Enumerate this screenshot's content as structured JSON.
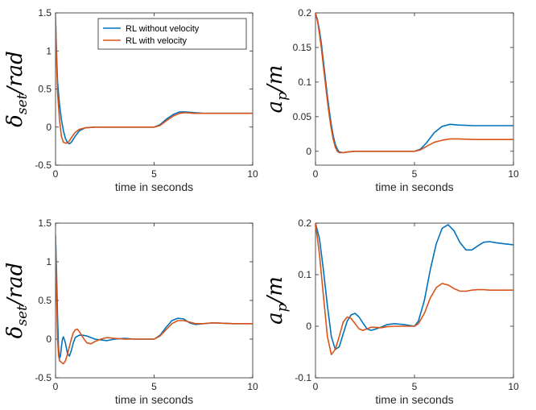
{
  "series_colors": {
    "RL without velocity": "#0072BD",
    "RL with velocity": "#D95319"
  },
  "chart_data": [
    {
      "type": "line",
      "xlabel": "time in seconds",
      "ylabel": {
        "main": "δ",
        "sub": "set",
        "rest": "/rad"
      },
      "xlim": [
        0,
        10
      ],
      "ylim": [
        -0.5,
        1.5
      ],
      "xticks": [
        0,
        5,
        10
      ],
      "xtick_labels": [
        "0",
        "5",
        "10"
      ],
      "yticks": [
        -0.5,
        0,
        0.5,
        1,
        1.5
      ],
      "ytick_labels": [
        "-0.5",
        "0",
        "0.5",
        "1",
        "1.5"
      ],
      "legend": {
        "placement": "top-right",
        "entries": [
          "RL without velocity",
          "RL with velocity"
        ]
      },
      "series": [
        {
          "name": "RL without velocity",
          "x": [
            0,
            0.05,
            0.1,
            0.2,
            0.3,
            0.4,
            0.5,
            0.6,
            0.7,
            0.8,
            1.0,
            1.2,
            1.5,
            2,
            3,
            4,
            5,
            5.3,
            5.6,
            6,
            6.3,
            6.6,
            7,
            7.5,
            8,
            9,
            10
          ],
          "y": [
            1.45,
            1.0,
            0.6,
            0.3,
            0.1,
            -0.05,
            -0.15,
            -0.2,
            -0.22,
            -0.2,
            -0.12,
            -0.05,
            -0.01,
            0,
            0,
            0,
            0,
            0.03,
            0.1,
            0.17,
            0.2,
            0.2,
            0.19,
            0.18,
            0.18,
            0.18,
            0.18
          ]
        },
        {
          "name": "RL with velocity",
          "x": [
            0,
            0.05,
            0.1,
            0.2,
            0.3,
            0.4,
            0.5,
            0.6,
            0.7,
            0.8,
            1.0,
            1.2,
            1.5,
            2,
            3,
            4,
            5,
            5.3,
            5.6,
            6,
            6.3,
            6.6,
            7,
            7.5,
            8,
            9,
            10
          ],
          "y": [
            1.45,
            0.9,
            0.45,
            0.1,
            -0.12,
            -0.2,
            -0.21,
            -0.21,
            -0.18,
            -0.14,
            -0.07,
            -0.03,
            -0.01,
            0,
            0,
            0,
            0,
            0.02,
            0.08,
            0.15,
            0.18,
            0.19,
            0.18,
            0.18,
            0.18,
            0.18,
            0.18
          ]
        }
      ]
    },
    {
      "type": "line",
      "xlabel": "time in seconds",
      "ylabel": {
        "main": "a",
        "sub": "p",
        "rest": "/m"
      },
      "xlim": [
        0,
        10
      ],
      "ylim": [
        -0.02,
        0.2
      ],
      "xticks": [
        0,
        5,
        10
      ],
      "xtick_labels": [
        "0",
        "5",
        "10"
      ],
      "yticks": [
        0,
        0.05,
        0.1,
        0.15,
        0.2
      ],
      "ytick_labels": [
        "0",
        "0.05",
        "0.1",
        "0.15",
        "0.2"
      ],
      "series": [
        {
          "name": "RL without velocity",
          "x": [
            0,
            0.1,
            0.2,
            0.3,
            0.4,
            0.5,
            0.6,
            0.7,
            0.8,
            0.9,
            1.0,
            1.1,
            1.2,
            1.4,
            1.6,
            2,
            3,
            4,
            5,
            5.3,
            5.6,
            6,
            6.4,
            6.8,
            7.2,
            8,
            9,
            10
          ],
          "y": [
            0.2,
            0.19,
            0.175,
            0.155,
            0.13,
            0.105,
            0.08,
            0.058,
            0.038,
            0.022,
            0.01,
            0.003,
            -0.001,
            -0.002,
            -0.001,
            0,
            0,
            0,
            0,
            0.003,
            0.012,
            0.027,
            0.036,
            0.039,
            0.038,
            0.037,
            0.037,
            0.037
          ]
        },
        {
          "name": "RL with velocity",
          "x": [
            0,
            0.1,
            0.2,
            0.3,
            0.4,
            0.5,
            0.6,
            0.7,
            0.8,
            0.9,
            1.0,
            1.1,
            1.2,
            1.4,
            1.6,
            2,
            3,
            4,
            5,
            5.3,
            5.6,
            6,
            6.4,
            6.8,
            7.2,
            8,
            9,
            10
          ],
          "y": [
            0.2,
            0.188,
            0.17,
            0.148,
            0.123,
            0.098,
            0.073,
            0.051,
            0.032,
            0.017,
            0.006,
            0.0,
            -0.002,
            -0.002,
            -0.001,
            0,
            0,
            0,
            0,
            0.002,
            0.007,
            0.013,
            0.016,
            0.018,
            0.018,
            0.017,
            0.017,
            0.017
          ]
        }
      ]
    },
    {
      "type": "line",
      "xlabel": "time in seconds",
      "ylabel": {
        "main": "δ",
        "sub": "set",
        "rest": "/rad"
      },
      "xlim": [
        0,
        10
      ],
      "ylim": [
        -0.5,
        1.5
      ],
      "xticks": [
        0,
        5,
        10
      ],
      "xtick_labels": [
        "0",
        "5",
        "10"
      ],
      "yticks": [
        -0.5,
        0,
        0.5,
        1,
        1.5
      ],
      "ytick_labels": [
        "-0.5",
        "0",
        "0.5",
        "1",
        "1.5"
      ],
      "series": [
        {
          "name": "RL without velocity",
          "x": [
            0,
            0.05,
            0.1,
            0.15,
            0.2,
            0.25,
            0.3,
            0.35,
            0.4,
            0.5,
            0.6,
            0.7,
            0.8,
            0.9,
            1.0,
            1.2,
            1.4,
            1.6,
            1.8,
            2.0,
            2.3,
            2.6,
            3,
            3.5,
            4,
            5,
            5.3,
            5.6,
            5.9,
            6.2,
            6.5,
            6.8,
            7.1,
            7.5,
            8,
            9,
            10
          ],
          "y": [
            1.35,
            0.9,
            0.3,
            -0.1,
            -0.25,
            -0.22,
            -0.1,
            0.0,
            0.03,
            -0.05,
            -0.18,
            -0.22,
            -0.15,
            -0.05,
            0.02,
            0.05,
            0.05,
            0.04,
            0.02,
            0.0,
            -0.01,
            -0.02,
            0.0,
            0.01,
            0.0,
            0,
            0.05,
            0.15,
            0.24,
            0.27,
            0.26,
            0.21,
            0.19,
            0.2,
            0.21,
            0.2,
            0.2
          ]
        },
        {
          "name": "RL with velocity",
          "x": [
            0,
            0.05,
            0.1,
            0.15,
            0.2,
            0.3,
            0.4,
            0.5,
            0.6,
            0.7,
            0.8,
            0.9,
            1.0,
            1.1,
            1.2,
            1.3,
            1.4,
            1.5,
            1.6,
            1.8,
            2.0,
            2.3,
            2.6,
            3,
            3.5,
            4,
            5,
            5.3,
            5.6,
            5.9,
            6.2,
            6.5,
            6.8,
            7.1,
            7.5,
            8,
            9,
            10
          ],
          "y": [
            1.35,
            0.6,
            0.0,
            -0.2,
            -0.28,
            -0.3,
            -0.32,
            -0.28,
            -0.2,
            -0.1,
            0.0,
            0.08,
            0.12,
            0.13,
            0.1,
            0.06,
            0.02,
            -0.02,
            -0.05,
            -0.06,
            -0.03,
            0.0,
            0.02,
            0.01,
            0.0,
            0.0,
            0,
            0.04,
            0.12,
            0.2,
            0.24,
            0.24,
            0.22,
            0.2,
            0.2,
            0.21,
            0.2,
            0.2
          ]
        }
      ]
    },
    {
      "type": "line",
      "xlabel": "time in seconds",
      "ylabel": {
        "main": "a",
        "sub": "p",
        "rest": "/m"
      },
      "xlim": [
        0,
        10
      ],
      "ylim": [
        -0.1,
        0.2
      ],
      "xticks": [
        0,
        5,
        10
      ],
      "xtick_labels": [
        "0",
        "5",
        "10"
      ],
      "yticks": [
        -0.1,
        0,
        0.1,
        0.2
      ],
      "ytick_labels": [
        "-0.1",
        "0",
        "0.1",
        "0.2"
      ],
      "series": [
        {
          "name": "RL without velocity",
          "x": [
            0,
            0.2,
            0.4,
            0.6,
            0.8,
            1.0,
            1.2,
            1.4,
            1.6,
            1.8,
            2.0,
            2.2,
            2.4,
            2.6,
            2.8,
            3.0,
            3.3,
            3.6,
            4.0,
            4.5,
            5.0,
            5.2,
            5.5,
            5.8,
            6.1,
            6.4,
            6.7,
            7.0,
            7.3,
            7.6,
            7.9,
            8.2,
            8.5,
            8.8,
            9.1,
            9.5,
            10
          ],
          "y": [
            0.2,
            0.17,
            0.11,
            0.04,
            -0.02,
            -0.045,
            -0.04,
            -0.015,
            0.01,
            0.022,
            0.025,
            0.018,
            0.006,
            -0.005,
            -0.008,
            -0.006,
            -0.002,
            0.003,
            0.005,
            0.003,
            0.0,
            0.01,
            0.05,
            0.11,
            0.16,
            0.19,
            0.197,
            0.185,
            0.162,
            0.148,
            0.148,
            0.156,
            0.163,
            0.164,
            0.162,
            0.16,
            0.158
          ]
        },
        {
          "name": "RL with velocity",
          "x": [
            0,
            0.2,
            0.4,
            0.6,
            0.8,
            1.0,
            1.2,
            1.4,
            1.6,
            1.8,
            2.0,
            2.2,
            2.4,
            2.6,
            2.8,
            3.0,
            3.3,
            3.6,
            4.0,
            4.5,
            5.0,
            5.2,
            5.5,
            5.8,
            6.1,
            6.4,
            6.7,
            7.0,
            7.3,
            7.6,
            7.9,
            8.2,
            8.5,
            8.8,
            9.1,
            9.5,
            10
          ],
          "y": [
            0.2,
            0.14,
            0.06,
            -0.02,
            -0.055,
            -0.045,
            -0.02,
            0.008,
            0.018,
            0.015,
            0.005,
            -0.005,
            -0.008,
            -0.005,
            -0.002,
            -0.002,
            -0.003,
            -0.001,
            0.0,
            0.0,
            0.0,
            0.005,
            0.025,
            0.055,
            0.075,
            0.083,
            0.08,
            0.073,
            0.068,
            0.068,
            0.07,
            0.071,
            0.071,
            0.07,
            0.07,
            0.07,
            0.07
          ]
        }
      ]
    }
  ]
}
